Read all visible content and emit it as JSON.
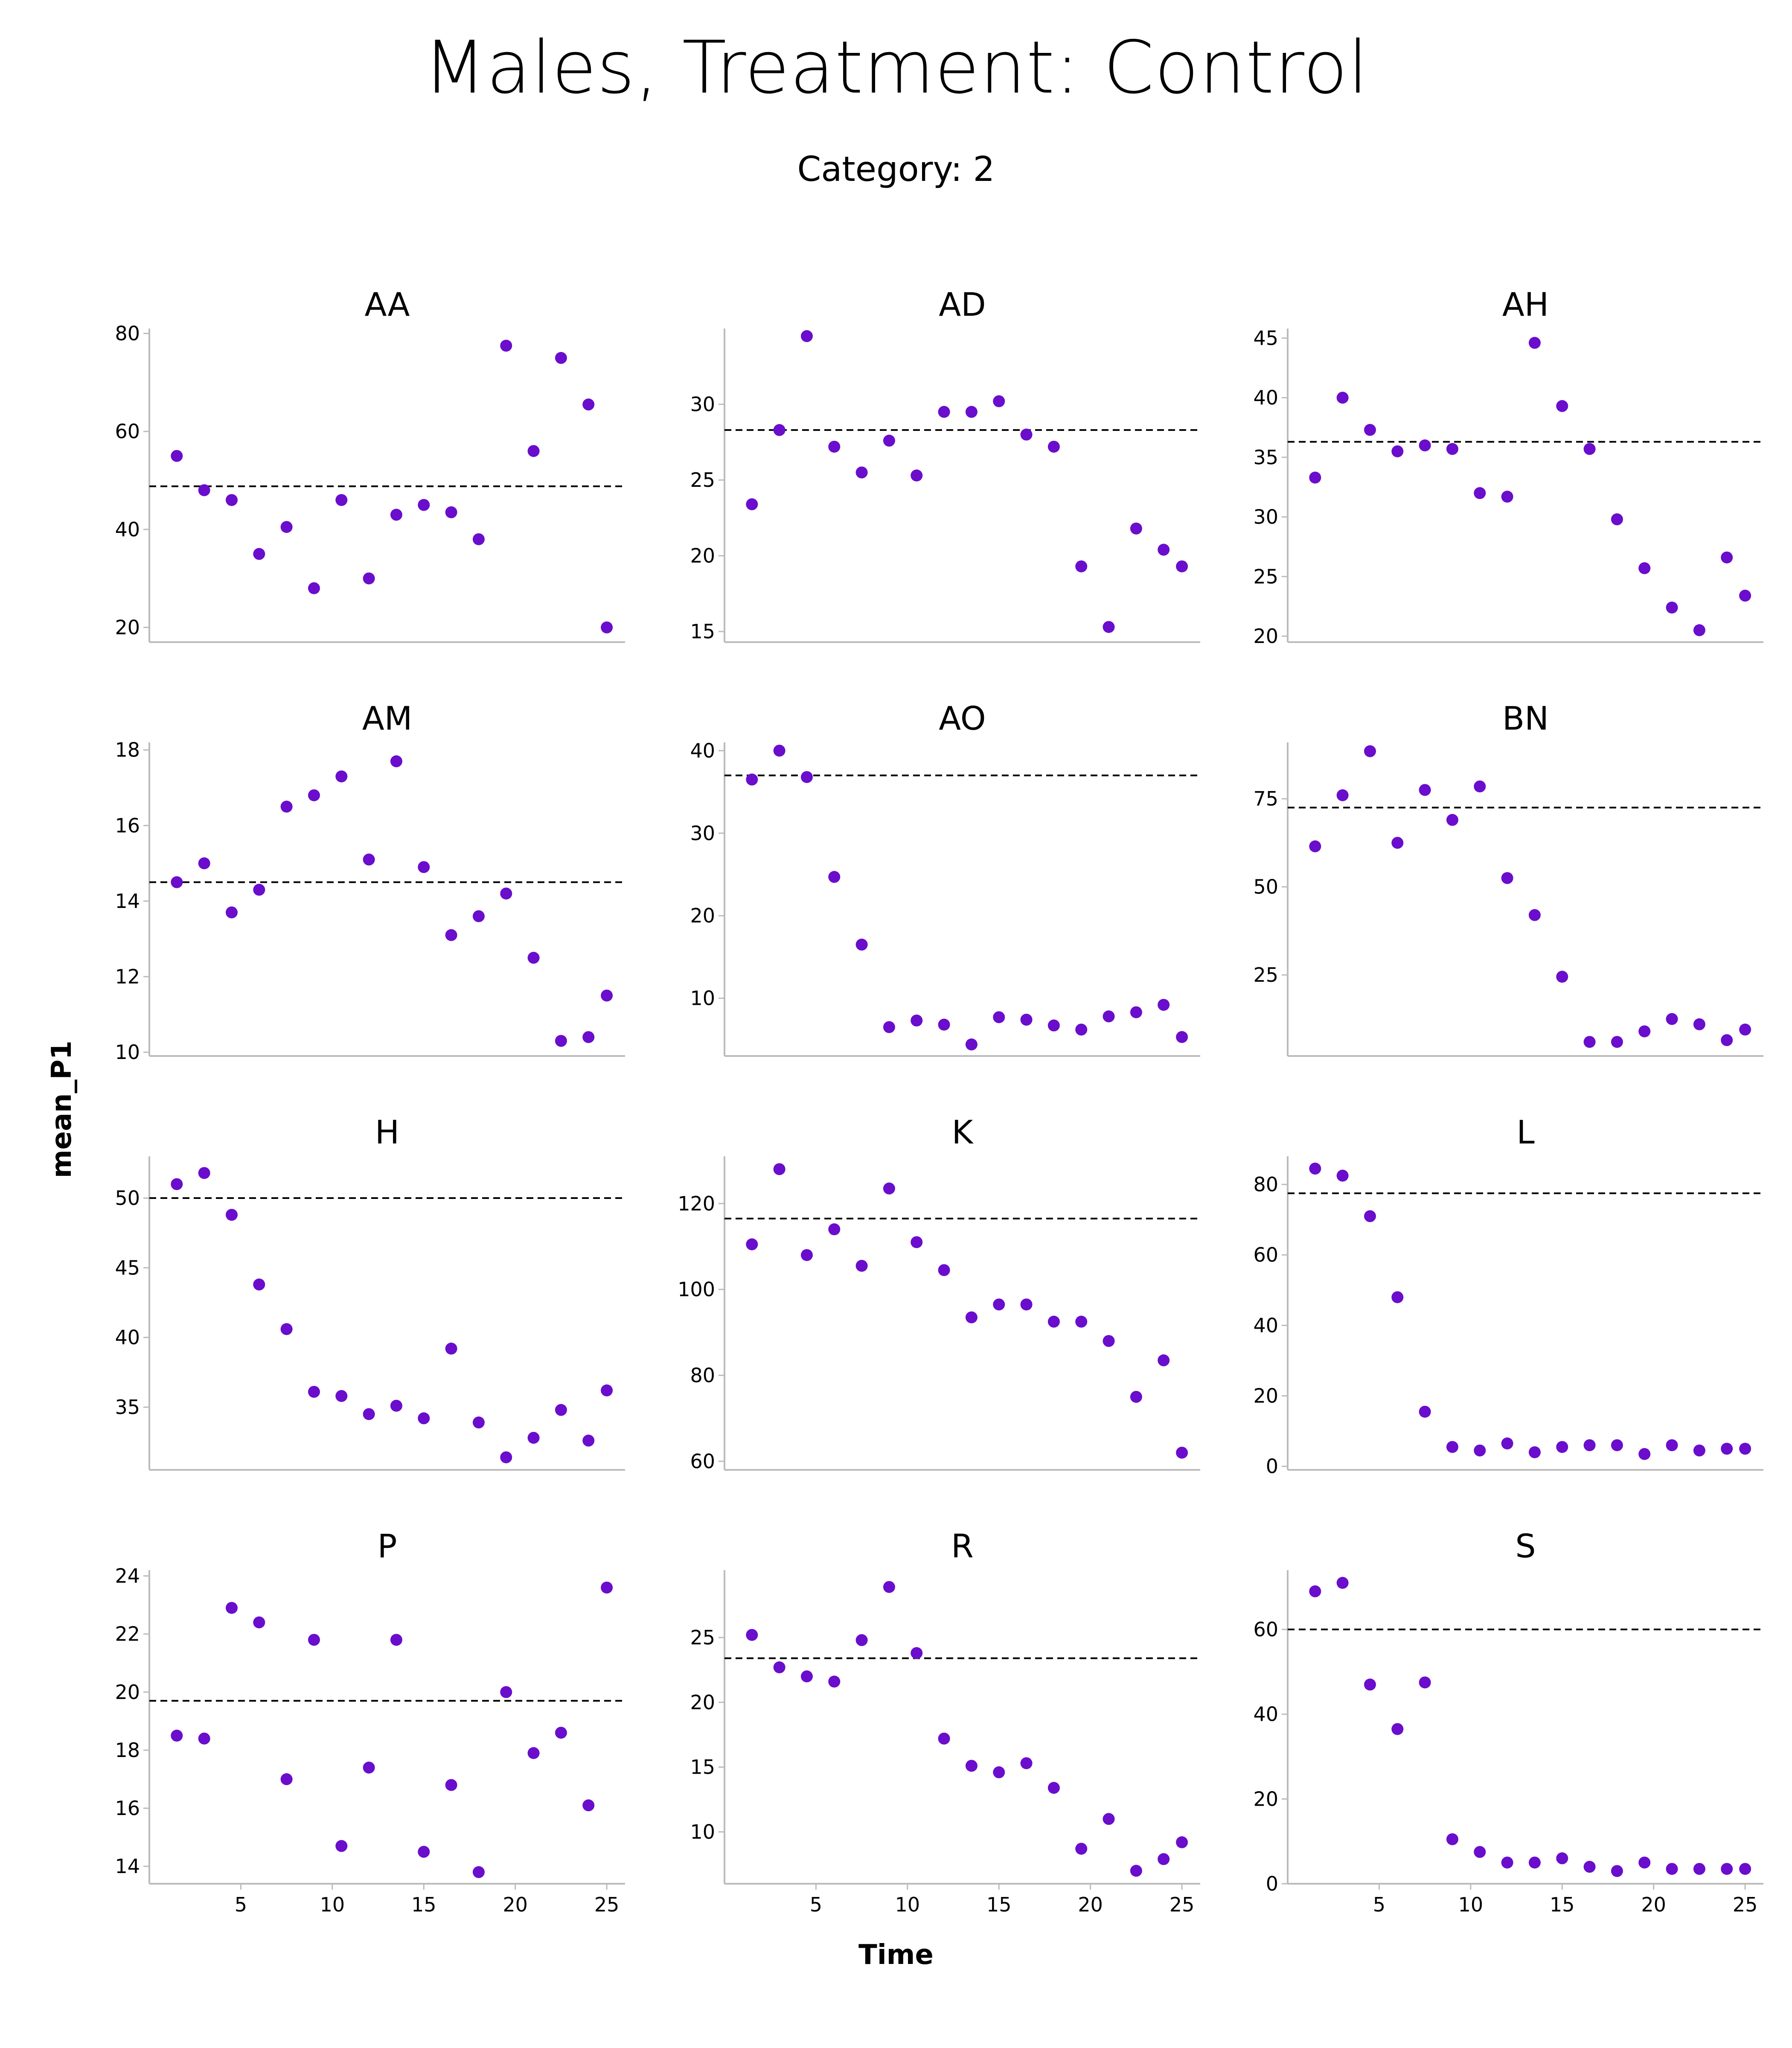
{
  "title": "Males, Treatment: Control",
  "subtitle": "Category: 2",
  "chart_data": {
    "type": "scatter",
    "xlabel": "Time",
    "ylabel": "mean_P1",
    "xlim": [
      0,
      26
    ],
    "xticks": [
      5,
      10,
      15,
      20,
      25
    ],
    "x": [
      1.5,
      3,
      4.5,
      6,
      7.5,
      9,
      10.5,
      12,
      13.5,
      15,
      16.5,
      18,
      19.5,
      21,
      22.5,
      24,
      25
    ],
    "point_color": "#6a0dcc",
    "panels": [
      {
        "name": "AA",
        "ylim": [
          17,
          81
        ],
        "yticks": [
          20,
          40,
          60,
          80
        ],
        "mean": 48.8,
        "values": [
          55,
          48,
          46,
          35,
          40.5,
          28,
          46,
          30,
          43,
          45,
          43.5,
          38,
          77.5,
          56,
          75,
          65.5,
          20
        ]
      },
      {
        "name": "AD",
        "ylim": [
          14.3,
          35
        ],
        "yticks": [
          15,
          20,
          25,
          30
        ],
        "mean": 28.3,
        "values": [
          23.4,
          28.3,
          34.5,
          27.2,
          25.5,
          27.6,
          25.3,
          29.5,
          29.5,
          30.2,
          28,
          27.2,
          19.3,
          15.3,
          21.8,
          20.4,
          19.3
        ]
      },
      {
        "name": "AH",
        "ylim": [
          19.5,
          45.8
        ],
        "yticks": [
          20,
          25,
          30,
          35,
          40,
          45
        ],
        "mean": 36.3,
        "values": [
          33.3,
          40,
          37.3,
          35.5,
          36,
          35.7,
          32,
          31.7,
          44.6,
          39.3,
          35.7,
          29.8,
          25.7,
          22.4,
          20.5,
          26.6,
          23.4
        ]
      },
      {
        "name": "AM",
        "ylim": [
          9.9,
          18.2
        ],
        "yticks": [
          10,
          12,
          14,
          16,
          18
        ],
        "mean": 14.5,
        "values": [
          14.5,
          15,
          13.7,
          14.3,
          16.5,
          16.8,
          17.3,
          15.1,
          17.7,
          14.9,
          13.1,
          13.6,
          14.2,
          12.5,
          10.3,
          10.4,
          11.5
        ]
      },
      {
        "name": "AO",
        "ylim": [
          3,
          41
        ],
        "yticks": [
          10,
          20,
          30,
          40
        ],
        "mean": 37,
        "values": [
          36.5,
          40,
          36.8,
          24.7,
          16.5,
          6.5,
          7.3,
          6.8,
          4.4,
          7.7,
          7.4,
          6.7,
          6.2,
          7.8,
          8.3,
          9.2,
          5.3
        ]
      },
      {
        "name": "BN",
        "ylim": [
          2,
          91
        ],
        "yticks": [
          25,
          50,
          75
        ],
        "mean": 72.5,
        "values": [
          61.5,
          76,
          88.5,
          62.5,
          77.5,
          69,
          78.5,
          52.5,
          42,
          24.5,
          6,
          6,
          9,
          12.5,
          11,
          6.5,
          9.5
        ]
      },
      {
        "name": "H",
        "ylim": [
          30.5,
          53
        ],
        "yticks": [
          35,
          40,
          45,
          50
        ],
        "mean": 50,
        "values": [
          51,
          51.8,
          48.8,
          43.8,
          40.6,
          36.1,
          35.8,
          34.5,
          35.1,
          34.2,
          39.2,
          33.9,
          31.4,
          32.8,
          34.8,
          32.6,
          36.2
        ]
      },
      {
        "name": "K",
        "ylim": [
          58,
          131
        ],
        "yticks": [
          60,
          80,
          100,
          120
        ],
        "mean": 116.5,
        "values": [
          110.5,
          128,
          108,
          114,
          105.5,
          123.5,
          111,
          104.5,
          93.5,
          96.5,
          96.5,
          92.5,
          92.5,
          88,
          75,
          83.5,
          62
        ]
      },
      {
        "name": "L",
        "ylim": [
          -1,
          88
        ],
        "yticks": [
          0,
          20,
          40,
          60,
          80
        ],
        "mean": 77.5,
        "values": [
          84.5,
          82.5,
          71,
          48,
          15.5,
          5.5,
          4.5,
          6.5,
          4,
          5.5,
          6,
          6,
          3.5,
          6,
          4.5,
          5,
          5
        ]
      },
      {
        "name": "P",
        "ylim": [
          13.4,
          24.2
        ],
        "yticks": [
          14,
          16,
          18,
          20,
          22,
          24
        ],
        "mean": 19.7,
        "values": [
          18.5,
          18.4,
          22.9,
          22.4,
          17,
          21.8,
          14.7,
          17.4,
          21.8,
          14.5,
          16.8,
          13.8,
          20,
          17.9,
          18.6,
          16.1,
          23.6
        ]
      },
      {
        "name": "R",
        "ylim": [
          6,
          30.2
        ],
        "yticks": [
          10,
          15,
          20,
          25
        ],
        "mean": 23.4,
        "values": [
          25.2,
          22.7,
          22,
          21.6,
          24.8,
          28.9,
          23.8,
          17.2,
          15.1,
          14.6,
          15.3,
          13.4,
          8.7,
          11,
          7,
          7.9,
          9.2
        ]
      },
      {
        "name": "S",
        "ylim": [
          0,
          74
        ],
        "yticks": [
          0,
          20,
          40,
          60
        ],
        "mean": 60,
        "values": [
          69,
          71,
          47,
          36.5,
          47.5,
          10.5,
          7.5,
          5,
          5,
          6,
          4,
          3,
          5,
          3.5,
          3.5,
          3.5,
          3.5
        ]
      }
    ]
  }
}
